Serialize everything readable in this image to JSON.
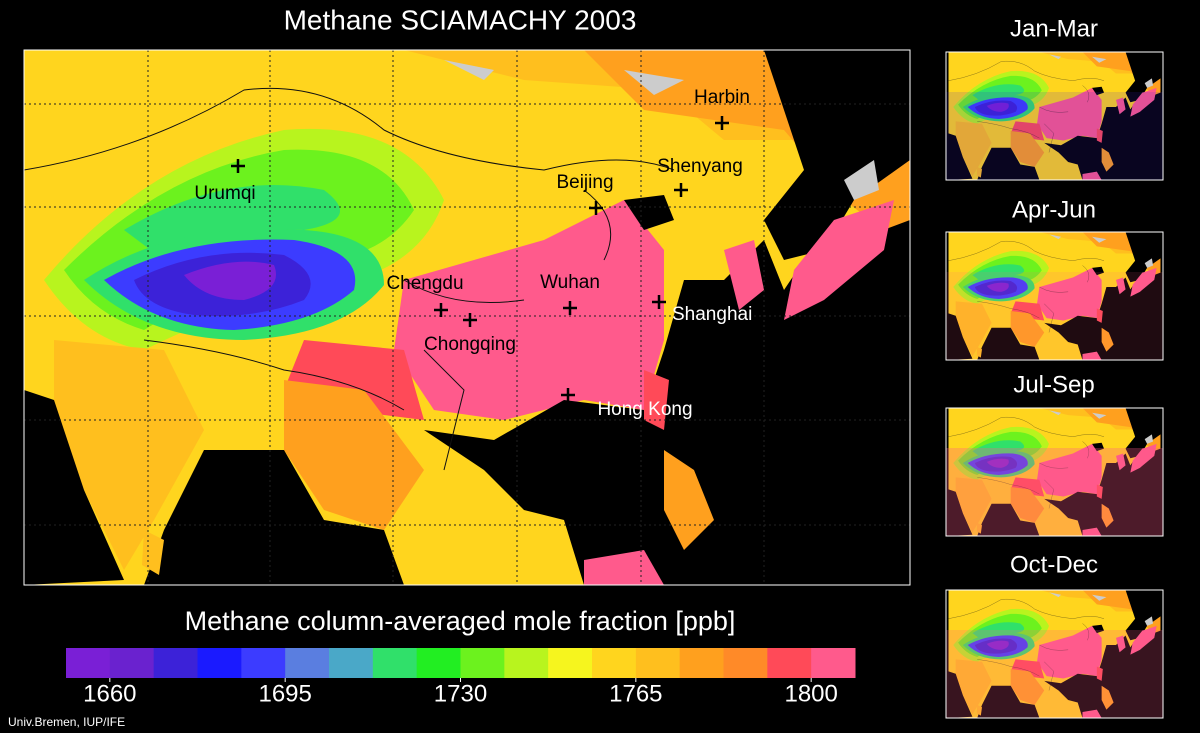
{
  "title": "Methane SCIAMACHY 2003",
  "cities": [
    "Harbin",
    "Urumqi",
    "Shenyang",
    "Beijing",
    "Chengdu",
    "Wuhan",
    "Shanghai",
    "Chongqing",
    "Hong Kong"
  ],
  "seasons": [
    "Jan-Mar",
    "Apr-Jun",
    "Jul-Sep",
    "Oct-Dec"
  ],
  "colorbar": {
    "label": "Methane column-averaged mole fraction [ppb]",
    "lim": [
      1651.25,
      1808.75
    ],
    "colors": [
      "#7a1fd6",
      "#6a22cf",
      "#3c22d8",
      "#1a1aff",
      "#3c3cff",
      "#5a7ee0",
      "#4aa8c8",
      "#30e06a",
      "#22ee22",
      "#6cf21e",
      "#b8f41e",
      "#f6f51e",
      "#ffd51e",
      "#ffbf1e",
      "#ffa01e",
      "#ff8a28",
      "#ff4a58",
      "#ff5a8c"
    ],
    "ticks": [
      1660,
      1695,
      1730,
      1765,
      1800
    ]
  },
  "credit": "Univ.Bremen, IUP/IFE"
}
